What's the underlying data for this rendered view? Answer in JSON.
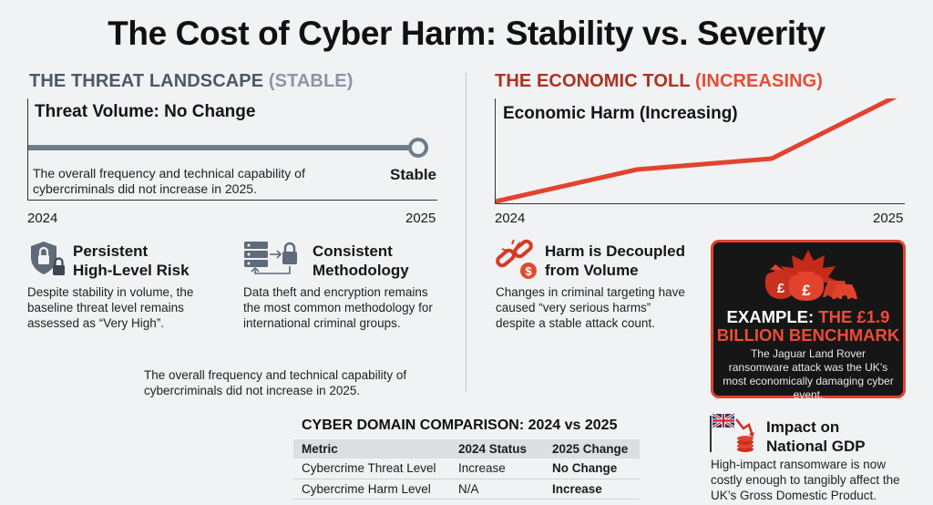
{
  "title": "The Cost of Cyber Harm: Stability vs. Severity",
  "left": {
    "heading_main": "THE THREAT LANDSCAPE",
    "heading_sub": "(STABLE)",
    "chart_title": "Threat Volume: No Change",
    "chart_note": "The overall frequency and technical capability of cybercriminals did not increase in 2025.",
    "end_label": "Stable",
    "x_start": "2024",
    "x_end": "2025",
    "line_color": "#6e7c8c",
    "card1": {
      "title_line1": "Persistent",
      "title_line2": "High-Level Risk",
      "body": "Despite stability in volume, the baseline threat level remains assessed as “Very High”.",
      "icon": "shield-lock-icon"
    },
    "card2": {
      "title_line1": "Consistent",
      "title_line2": "Methodology",
      "body": "Data theft and encryption remains the most common methodology for international criminal groups.",
      "icon": "server-lock-icon"
    },
    "repeat_note": "The overall frequency and technical capability of cybercriminals did not increase in 2025."
  },
  "right": {
    "heading_main": "THE ECONOMIC TOLL",
    "heading_sub": "(INCREASING)",
    "chart_title": "Economic Harm (Increasing)",
    "x_start": "2024",
    "x_end": "2025",
    "line_color": "#e2432f",
    "card1": {
      "title_line1": "Harm is Decoupled",
      "title_line2": "from Volume",
      "body": "Changes in criminal targeting have caused “very serious harms” despite a stable attack count.",
      "icon": "broken-chain-money-icon"
    },
    "example": {
      "label": "EXAMPLE:",
      "highlight_line1": "THE £1.9",
      "highlight_line2": "BILLION BENCHMARK",
      "body": "The Jaguar Land Rover ransomware attack was the UK’s most economically damaging cyber event.",
      "icon": "money-bag-cars-icon"
    },
    "gdp": {
      "title_line1": "Impact on",
      "title_line2": "National GDP",
      "body": "High-impact ransomware is now costly enough to tangibly affect the UK’s Gross Domestic Product.",
      "icon": "uk-flag-decline-icon"
    }
  },
  "table": {
    "title": "CYBER DOMAIN COMPARISON: 2024 vs 2025",
    "headers": [
      "Metric",
      "2024 Status",
      "2025 Change"
    ],
    "rows": [
      [
        "Cybercrime Threat Level",
        "Increase",
        "No Change"
      ],
      [
        "Cybercrime Harm Level",
        "N/A",
        "Increase"
      ]
    ]
  }
}
